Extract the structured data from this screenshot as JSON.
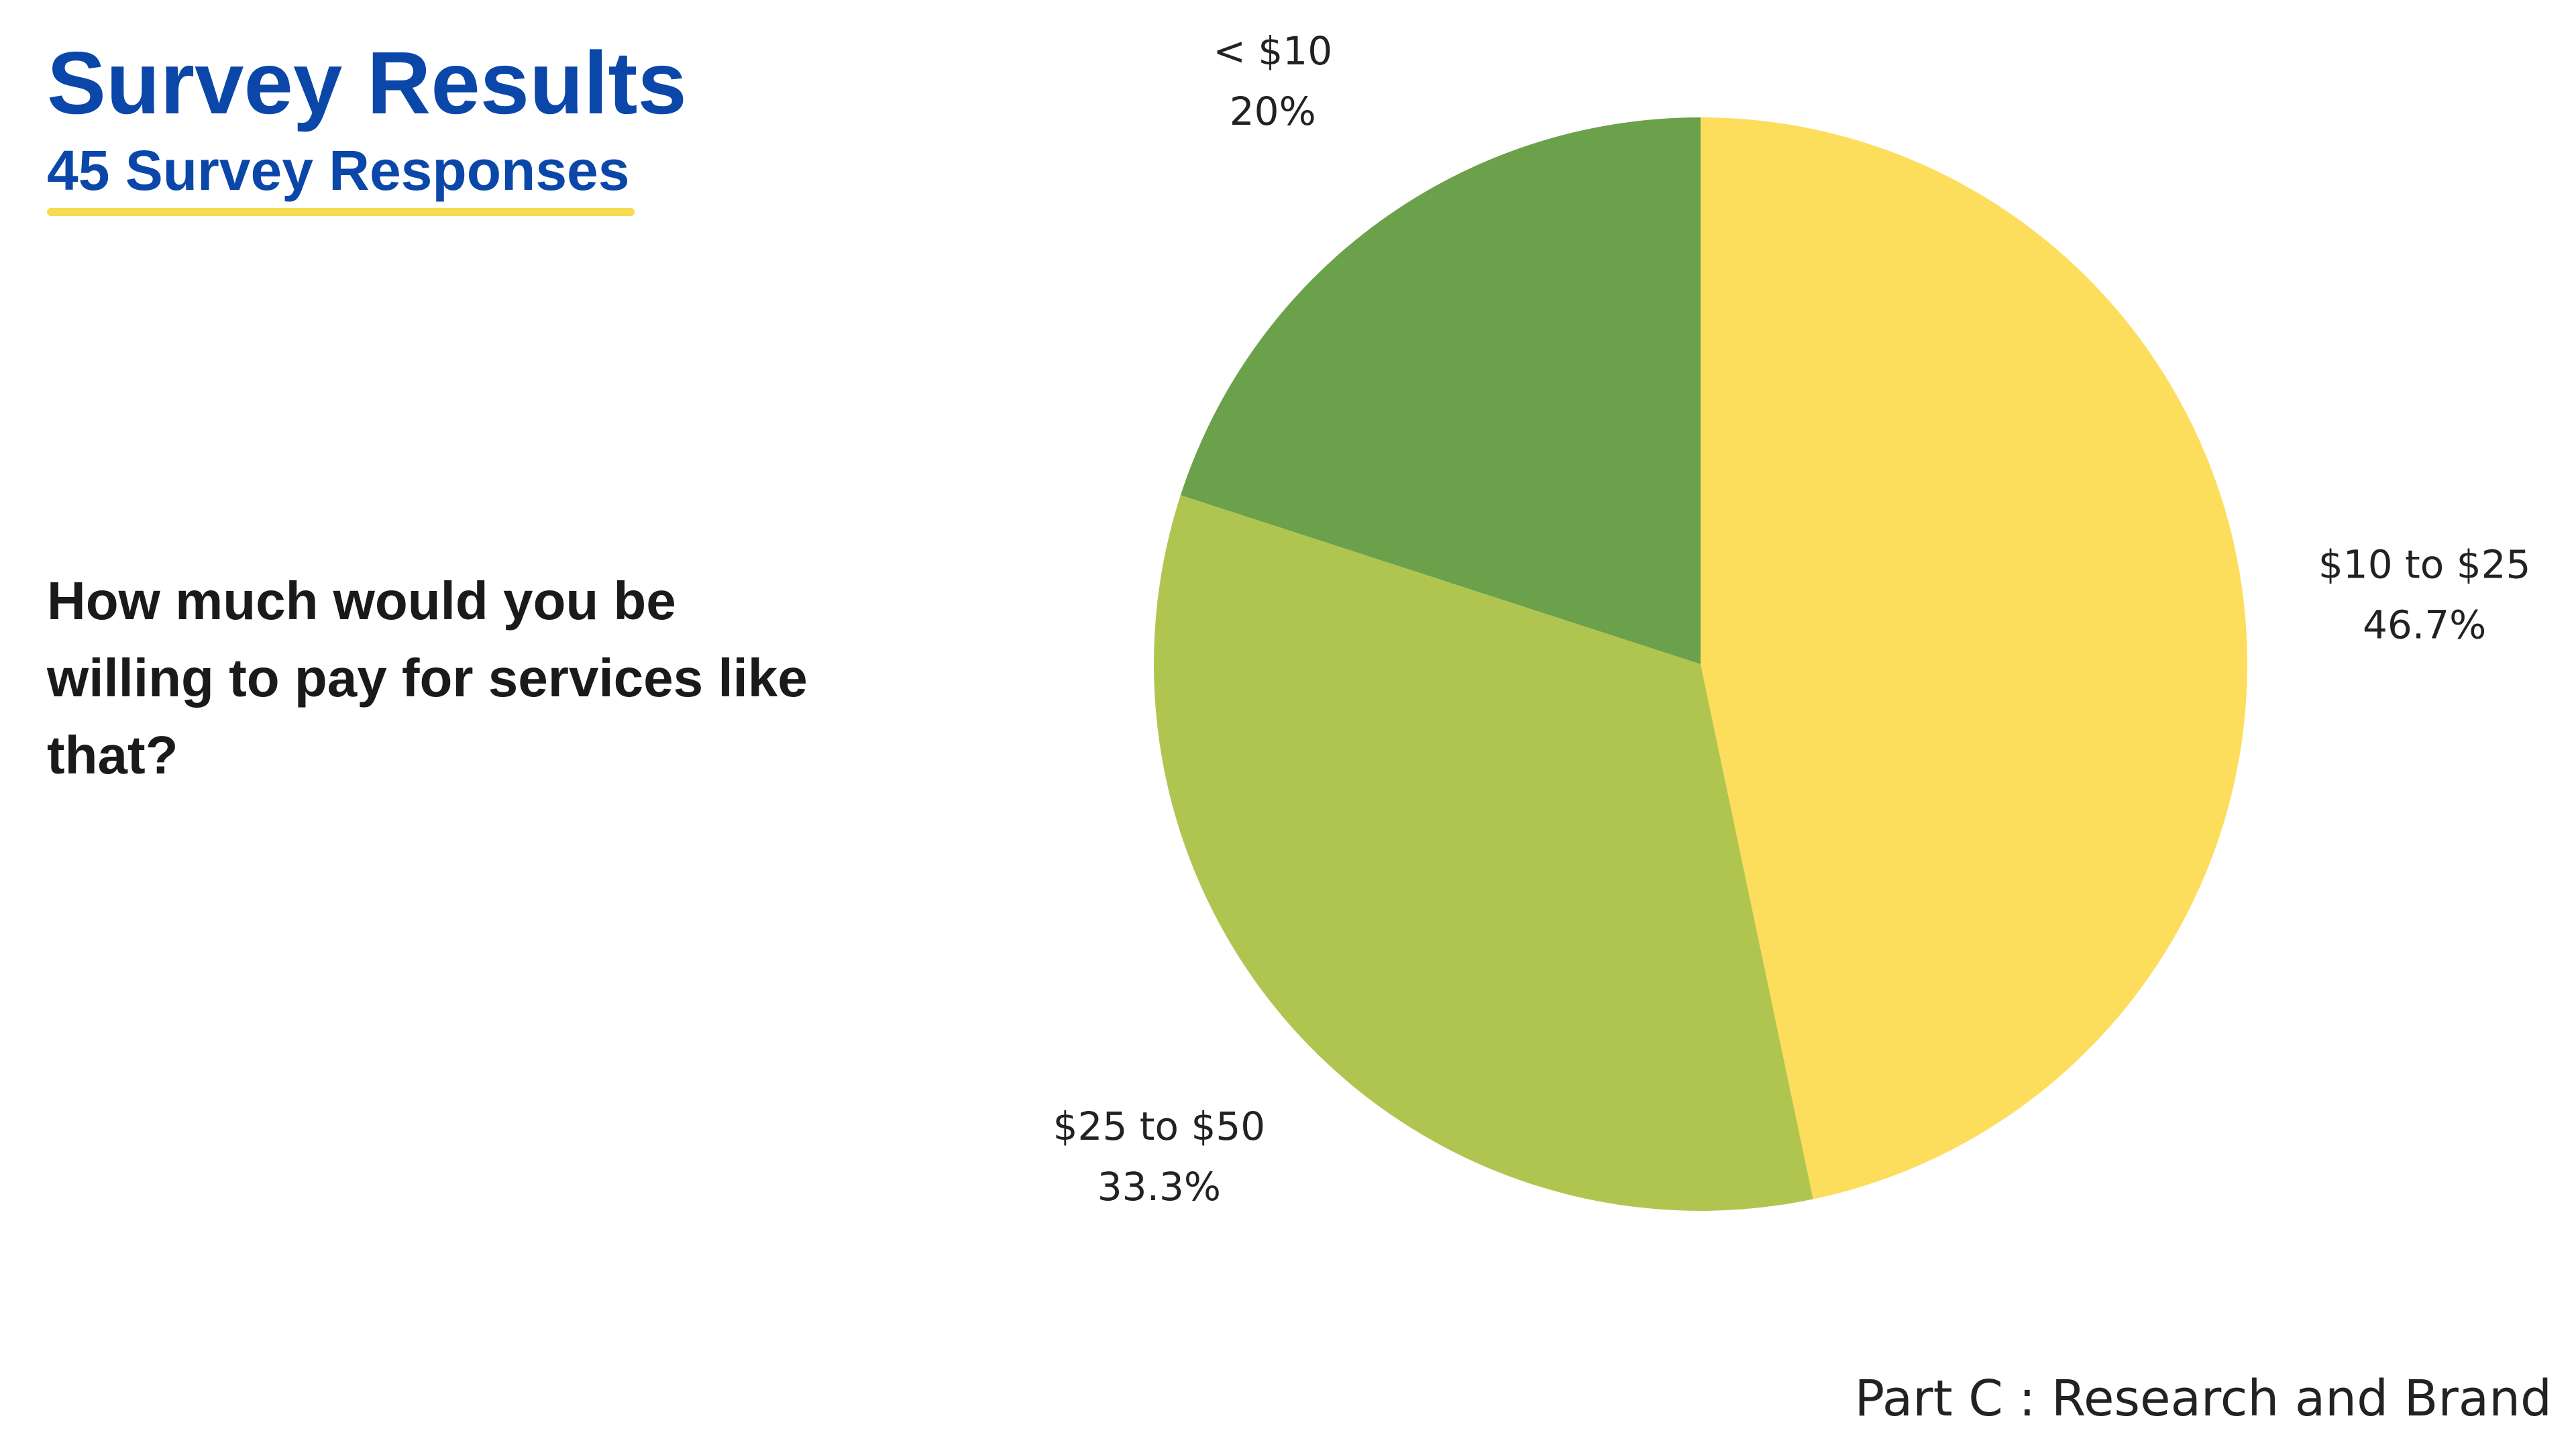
{
  "title": "Survey Results",
  "subtitle": "45 Survey Responses",
  "question": "How much would you be willing to pay for services like that?",
  "footer": "Part C : Research and Brand",
  "colors": {
    "heading": "#0a47a9",
    "underline": "#f5dd4f",
    "text": "#1a1a1a"
  },
  "chart_data": {
    "type": "pie",
    "start_angle_deg": 0,
    "direction": "clockwise",
    "slices": [
      {
        "label": "$10 to $25",
        "value": 46.7,
        "display": "46.7%",
        "color": "#fddd5c"
      },
      {
        "label": "$25 to $50",
        "value": 33.3,
        "display": "33.3%",
        "color": "#b0c550"
      },
      {
        "label": "< $10",
        "value": 20,
        "display": "20%",
        "color": "#6ba14b"
      }
    ]
  }
}
